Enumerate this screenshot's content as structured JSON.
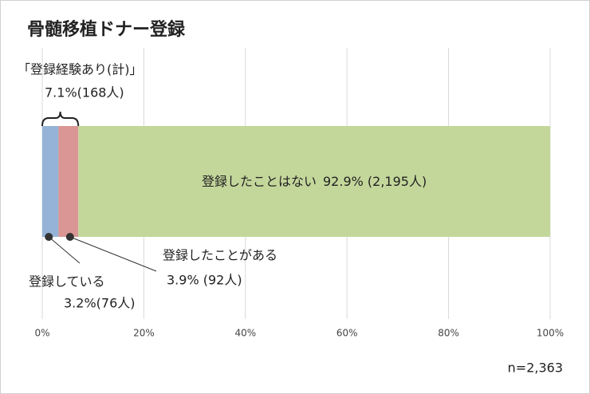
{
  "chart_data": {
    "type": "stacked-bar-horizontal",
    "title": "骨髄移植ドナー登録",
    "series": [
      {
        "name": "登録している",
        "color": "#95b3d7",
        "values": [
          3.2
        ],
        "value_labels": [
          "3.2%(76人)"
        ]
      },
      {
        "name": "登録したことがある",
        "color": "#da9694",
        "values": [
          3.9
        ],
        "value_labels": [
          "3.9% (92人)"
        ]
      },
      {
        "name": "登録したことはない",
        "color": "#c4d79b",
        "values": [
          92.9
        ],
        "value_labels": [
          "92.9% (2,195人)"
        ]
      }
    ],
    "xlim": [
      0,
      100
    ],
    "xticks": [
      {
        "value": 0,
        "label": "0%"
      },
      {
        "value": 20,
        "label": "20%"
      },
      {
        "value": 40,
        "label": "40%"
      },
      {
        "value": 60,
        "label": "60%"
      },
      {
        "value": 80,
        "label": "80%"
      },
      {
        "value": 100,
        "label": "100%"
      }
    ],
    "grid": true,
    "annotations": [
      "「登録経験あり(計)」",
      "7.1%(168人)"
    ],
    "note": "n=2,363"
  }
}
